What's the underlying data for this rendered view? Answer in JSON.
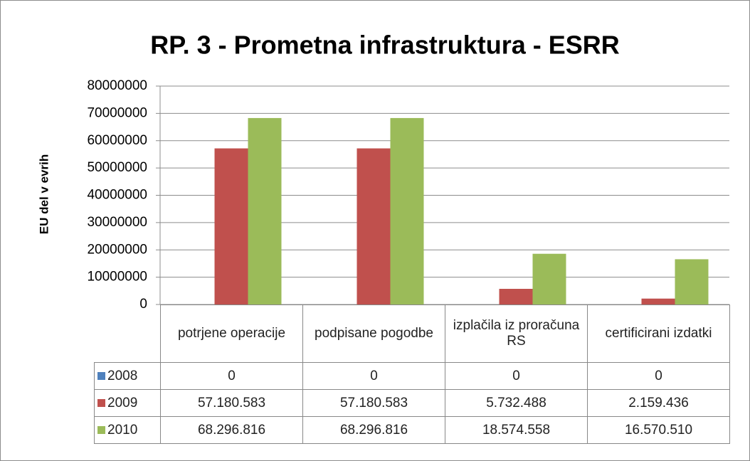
{
  "chart_data": {
    "type": "bar",
    "title": "RP. 3 - Prometna infrastruktura - ESRR",
    "ylabel": "EU del v evrih",
    "categories": [
      "potrjene operacije",
      "podpisane pogodbe",
      "izplačila iz proračuna RS",
      "certificirani izdatki"
    ],
    "series": [
      {
        "name": "2008",
        "color": "#4f81bd",
        "values": [
          0,
          0,
          0,
          0
        ]
      },
      {
        "name": "2009",
        "color": "#c0504d",
        "values": [
          57180583,
          57180583,
          5732488,
          2159436
        ],
        "value_labels": [
          "57.180.583",
          "57.180.583",
          "5.732.488",
          "2.159.436"
        ]
      },
      {
        "name": "2010",
        "color": "#9bbb59",
        "values": [
          68296816,
          68296816,
          18574558,
          16570510
        ],
        "value_labels": [
          "68.296.816",
          "68.296.816",
          "18.574.558",
          "16.570.510"
        ]
      }
    ],
    "ylim": [
      0,
      80000000
    ],
    "yticks": [
      0,
      10000000,
      20000000,
      30000000,
      40000000,
      50000000,
      60000000,
      70000000,
      80000000
    ],
    "grid": true,
    "data_table": true
  }
}
